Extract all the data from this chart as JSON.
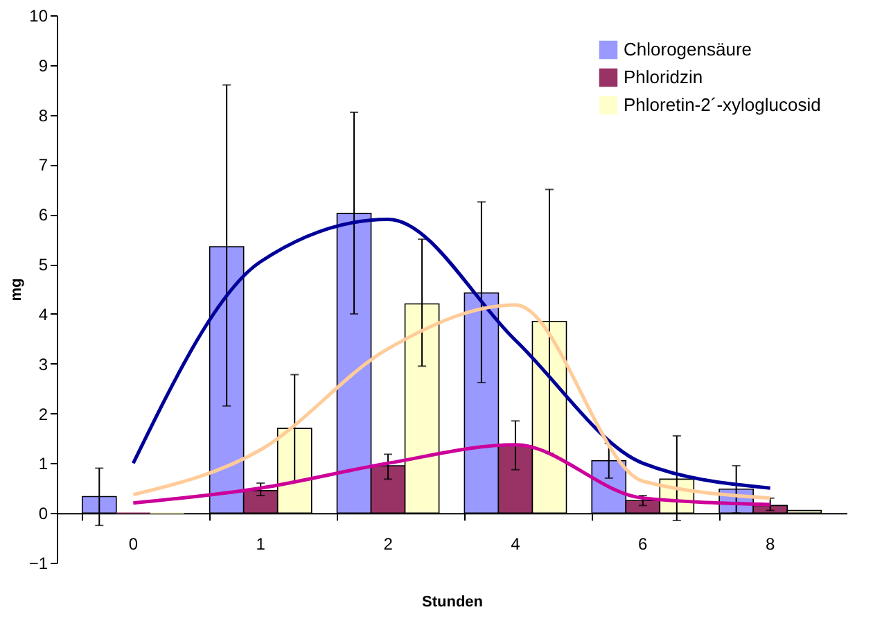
{
  "chart_data": {
    "type": "bar",
    "xlabel": "Stunden",
    "ylabel": "mg",
    "categories": [
      "0",
      "1",
      "2",
      "4",
      "6",
      "8"
    ],
    "series": [
      {
        "name": "Chlorogensäure",
        "color": "#9999ff",
        "values": [
          0.33,
          5.35,
          6.02,
          4.42,
          1.05,
          0.48
        ],
        "errors": [
          [
            -0.25,
            0.9
          ],
          [
            2.15,
            8.6
          ],
          [
            4.0,
            8.05
          ],
          [
            2.62,
            6.25
          ],
          [
            0.7,
            1.4
          ],
          [
            0.0,
            0.95
          ]
        ]
      },
      {
        "name": "Phloridzin",
        "color": "#993366",
        "values": [
          0,
          0.45,
          0.95,
          1.35,
          0.25,
          0.15
        ],
        "errors": [
          null,
          [
            0.35,
            0.6
          ],
          [
            0.68,
            1.18
          ],
          [
            0.87,
            1.85
          ],
          [
            0.15,
            0.35
          ],
          [
            0.05,
            0.3
          ]
        ]
      },
      {
        "name": "Phloretin-2´-xyloglucosid",
        "color": "#ffffcc",
        "values": [
          0,
          1.7,
          4.2,
          3.85,
          0.68,
          0.05
        ],
        "errors": [
          null,
          [
            0.63,
            2.78
          ],
          [
            2.95,
            5.5
          ],
          [
            1.2,
            6.5
          ],
          [
            -0.15,
            1.55
          ],
          null
        ]
      },
      {
        "type": "line",
        "color": "#000099",
        "values": [
          1.0,
          5.05,
          5.9,
          3.47,
          1.0,
          0.5
        ]
      },
      {
        "type": "line",
        "color": "#ffcc99",
        "values": [
          0.37,
          1.27,
          3.3,
          4.18,
          0.64,
          0.3
        ]
      },
      {
        "type": "line",
        "color": "#cc0099",
        "values": [
          0.2,
          0.5,
          1.0,
          1.37,
          0.3,
          0.17
        ]
      }
    ],
    "ylim": [
      -1,
      10
    ],
    "yticks": [
      -1,
      0,
      1,
      2,
      3,
      4,
      5,
      6,
      7,
      8,
      9,
      10
    ],
    "grid": false,
    "legend": "top right"
  }
}
